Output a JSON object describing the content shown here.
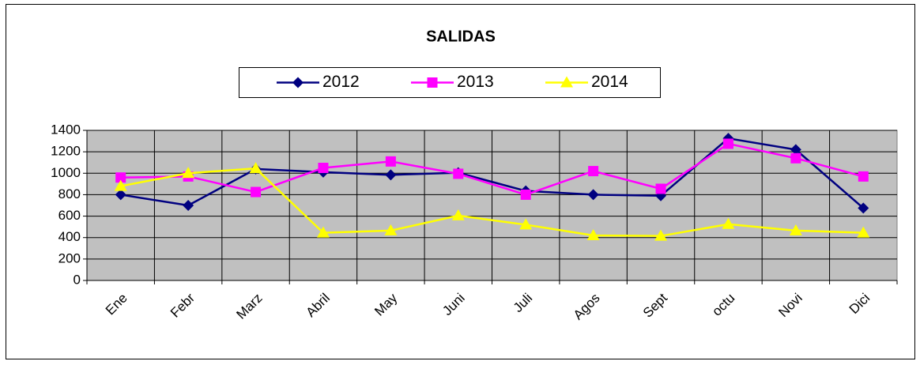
{
  "chart_data": {
    "type": "line",
    "title": "SALIDAS",
    "categories": [
      "Ene",
      "Febr",
      "Marz",
      "Abril",
      "May",
      "Juni",
      "Juli",
      "Agos",
      "Sept",
      "octu",
      "Novi",
      "Dici"
    ],
    "series": [
      {
        "name": "2012",
        "color": "#000080",
        "marker": "diamond",
        "values": [
          800,
          700,
          1040,
          1010,
          985,
          1005,
          835,
          800,
          790,
          1325,
          1220,
          675
        ]
      },
      {
        "name": "2013",
        "color": "#ff00ff",
        "marker": "square",
        "values": [
          960,
          970,
          825,
          1050,
          1110,
          995,
          800,
          1020,
          855,
          1275,
          1140,
          970
        ]
      },
      {
        "name": "2014",
        "color": "#ffff00",
        "marker": "triangle",
        "values": [
          880,
          1000,
          1045,
          445,
          465,
          605,
          520,
          420,
          415,
          525,
          465,
          445
        ]
      }
    ],
    "ylim": [
      0,
      1400
    ],
    "yticks": [
      0,
      200,
      400,
      600,
      800,
      1000,
      1200,
      1400
    ],
    "grid": true,
    "legend": "top"
  }
}
